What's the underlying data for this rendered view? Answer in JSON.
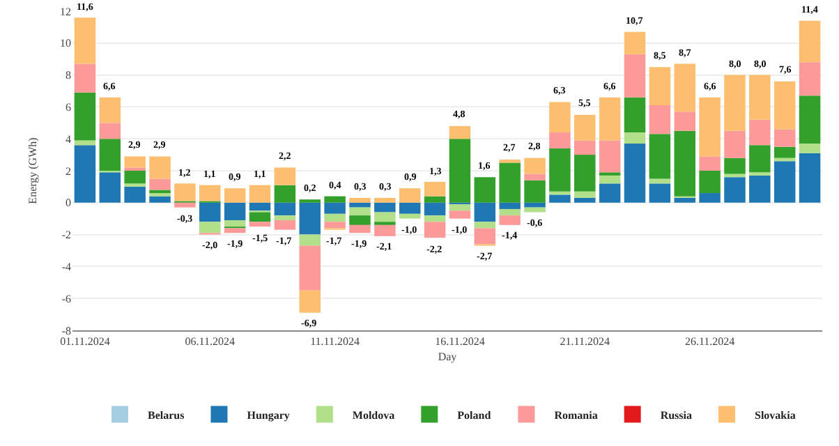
{
  "chart_data": {
    "type": "bar",
    "stacked": true,
    "xlabel": "Day",
    "ylabel": "Energy (GWh)",
    "x": [
      "2024-11-01",
      "2024-11-02",
      "2024-11-03",
      "2024-11-04",
      "2024-11-05",
      "2024-11-06",
      "2024-11-07",
      "2024-11-08",
      "2024-11-09",
      "2024-11-10",
      "2024-11-11",
      "2024-11-12",
      "2024-11-13",
      "2024-11-14",
      "2024-11-15",
      "2024-11-16",
      "2024-11-17",
      "2024-11-18",
      "2024-11-19",
      "2024-11-20",
      "2024-11-21",
      "2024-11-22",
      "2024-11-23",
      "2024-11-24",
      "2024-11-25",
      "2024-11-26",
      "2024-11-27",
      "2024-11-28",
      "2024-11-29",
      "2024-11-30"
    ],
    "xlim": [
      "2024-10-31T12:00",
      "2024-11-30T12:00"
    ],
    "xticks": [
      {
        "value": "2024-11-01",
        "label": "01.11.2024"
      },
      {
        "value": "2024-11-06",
        "label": "06.11.2024"
      },
      {
        "value": "2024-11-11",
        "label": "11.11.2024"
      },
      {
        "value": "2024-11-16",
        "label": "16.11.2024"
      },
      {
        "value": "2024-11-21",
        "label": "21.11.2024"
      },
      {
        "value": "2024-11-26",
        "label": "26.11.2024"
      }
    ],
    "ylim": [
      -8,
      12
    ],
    "yticks": [
      -8,
      -6,
      -4,
      -2,
      0,
      2,
      4,
      6,
      8,
      10,
      12
    ],
    "grid": "y",
    "legend": "bottom",
    "series": [
      {
        "name": "Belarus",
        "color": "#a6cee3",
        "values": [
          0,
          0,
          0,
          0,
          0,
          0,
          0,
          0,
          0,
          0,
          0,
          0,
          0,
          0,
          0,
          0,
          0,
          0,
          0,
          0,
          0,
          0,
          0,
          0,
          0,
          0,
          0,
          0,
          0,
          0
        ]
      },
      {
        "name": "Hungary",
        "color": "#1f78b4",
        "values": [
          3.6,
          1.9,
          1.0,
          0.4,
          0,
          -1.2,
          -1.1,
          -0.5,
          -0.8,
          -2.0,
          -0.7,
          -0.3,
          -0.6,
          -0.7,
          -0.8,
          -0.1,
          -1.2,
          -0.4,
          -0.3,
          0.5,
          0.3,
          1.2,
          3.7,
          1.2,
          0.3,
          0.6,
          1.6,
          1.7,
          2.6,
          3.1
        ]
      },
      {
        "name": "Moldova",
        "color": "#b2df8a",
        "values": [
          0.3,
          0.1,
          0.2,
          0.2,
          0,
          -0.7,
          -0.4,
          -0.1,
          -0.3,
          -0.7,
          -0.5,
          -0.5,
          -0.6,
          -0.3,
          -0.4,
          -0.4,
          -0.4,
          -0.4,
          -0.3,
          0.2,
          0.4,
          0.5,
          0.7,
          0.3,
          0.1,
          0,
          0.2,
          0.2,
          0.2,
          0.6
        ]
      },
      {
        "name": "Poland",
        "color": "#33a02c",
        "values": [
          3.0,
          2.0,
          0.8,
          0.2,
          0.1,
          0.1,
          -0.1,
          -0.6,
          1.1,
          0.2,
          0.4,
          -0.6,
          -0.2,
          0,
          0.4,
          4.0,
          1.6,
          2.5,
          1.4,
          2.7,
          2.3,
          0.2,
          2.2,
          2.8,
          4.1,
          1.4,
          1.0,
          1.7,
          0.7,
          3.0
        ]
      },
      {
        "name": "Romania",
        "color": "#fb9a99",
        "values": [
          1.8,
          1.0,
          0.2,
          0.7,
          -0.3,
          -0.1,
          -0.3,
          -0.3,
          -0.6,
          -2.8,
          -0.4,
          -0.5,
          -0.7,
          0,
          -1.0,
          -0.5,
          -1.0,
          -0.6,
          0.4,
          1.0,
          0.9,
          2.0,
          2.7,
          1.8,
          1.2,
          0.9,
          1.7,
          1.6,
          1.1,
          2.1
        ]
      },
      {
        "name": "Russia",
        "color": "#e31a1c",
        "values": [
          0,
          0,
          0,
          0,
          0,
          0,
          0,
          0,
          0,
          0,
          0,
          0,
          0,
          0,
          0,
          0,
          0,
          0,
          0,
          0,
          0,
          0,
          0,
          0,
          0,
          0,
          0,
          0,
          0,
          0
        ]
      },
      {
        "name": "Slovakia",
        "color": "#fdbf6f",
        "values": [
          2.9,
          1.6,
          0.7,
          1.4,
          1.1,
          1.0,
          0.9,
          1.1,
          1.1,
          -1.4,
          -0.1,
          0.3,
          0.3,
          0.9,
          0.9,
          0.8,
          -0.1,
          0.2,
          1.0,
          1.9,
          1.6,
          2.7,
          1.4,
          2.4,
          3.0,
          3.7,
          3.5,
          2.8,
          3.0,
          2.6
        ]
      }
    ],
    "annotations": [
      {
        "text": "11,6",
        "x": "2024-11-01",
        "y": 11.6
      },
      {
        "text": "6,6",
        "x": "2024-11-02",
        "y": 6.6
      },
      {
        "text": "2,9",
        "x": "2024-11-03",
        "y": 2.9
      },
      {
        "text": "2,9",
        "x": "2024-11-04",
        "y": 2.9
      },
      {
        "text": "1,2",
        "x": "2024-11-05",
        "y": 1.2
      },
      {
        "text": "1,1",
        "x": "2024-11-06",
        "y": 1.1
      },
      {
        "text": "0,9",
        "x": "2024-11-07",
        "y": 0.9
      },
      {
        "text": "1,1",
        "x": "2024-11-08",
        "y": 1.1
      },
      {
        "text": "2,2",
        "x": "2024-11-09",
        "y": 2.2
      },
      {
        "text": "0,2",
        "x": "2024-11-10",
        "y": 0.2
      },
      {
        "text": "0,4",
        "x": "2024-11-11",
        "y": 0.4
      },
      {
        "text": "0,3",
        "x": "2024-11-12",
        "y": 0.3
      },
      {
        "text": "0,3",
        "x": "2024-11-13",
        "y": 0.3
      },
      {
        "text": "0,9",
        "x": "2024-11-14",
        "y": 0.9
      },
      {
        "text": "1,3",
        "x": "2024-11-15",
        "y": 1.3
      },
      {
        "text": "4,8",
        "x": "2024-11-16",
        "y": 4.8
      },
      {
        "text": "1,6",
        "x": "2024-11-17",
        "y": 1.6
      },
      {
        "text": "2,7",
        "x": "2024-11-18",
        "y": 2.7
      },
      {
        "text": "2,8",
        "x": "2024-11-19",
        "y": 2.8
      },
      {
        "text": "6,3",
        "x": "2024-11-20",
        "y": 6.3
      },
      {
        "text": "5,5",
        "x": "2024-11-21",
        "y": 5.5
      },
      {
        "text": "6,6",
        "x": "2024-11-22",
        "y": 6.6
      },
      {
        "text": "10,7",
        "x": "2024-11-23",
        "y": 10.7
      },
      {
        "text": "8,5",
        "x": "2024-11-24",
        "y": 8.5
      },
      {
        "text": "8,7",
        "x": "2024-11-25",
        "y": 8.7
      },
      {
        "text": "6,6",
        "x": "2024-11-26",
        "y": 6.6
      },
      {
        "text": "8,0",
        "x": "2024-11-27",
        "y": 8.0
      },
      {
        "text": "8,0",
        "x": "2024-11-28",
        "y": 8.0
      },
      {
        "text": "7,6",
        "x": "2024-11-29",
        "y": 7.6
      },
      {
        "text": "11,4",
        "x": "2024-11-30",
        "y": 11.4
      },
      {
        "text": "-0,3",
        "x": "2024-11-05",
        "y": -0.3
      },
      {
        "text": "-2,0",
        "x": "2024-11-06",
        "y": -2.0
      },
      {
        "text": "-1,9",
        "x": "2024-11-07",
        "y": -1.9
      },
      {
        "text": "-1,5",
        "x": "2024-11-08",
        "y": -1.5
      },
      {
        "text": "-1,7",
        "x": "2024-11-09",
        "y": -1.7
      },
      {
        "text": "-6,9",
        "x": "2024-11-10",
        "y": -6.9
      },
      {
        "text": "-1,7",
        "x": "2024-11-11",
        "y": -1.7
      },
      {
        "text": "-1,9",
        "x": "2024-11-12",
        "y": -1.9
      },
      {
        "text": "-2,1",
        "x": "2024-11-13",
        "y": -2.1
      },
      {
        "text": "-1,0",
        "x": "2024-11-14",
        "y": -1.0
      },
      {
        "text": "-2,2",
        "x": "2024-11-15",
        "y": -2.2
      },
      {
        "text": "-1,0",
        "x": "2024-11-16",
        "y": -1.0
      },
      {
        "text": "-2,7",
        "x": "2024-11-17",
        "y": -2.7
      },
      {
        "text": "-1,4",
        "x": "2024-11-18",
        "y": -1.4
      },
      {
        "text": "-0,6",
        "x": "2024-11-19",
        "y": -0.6
      }
    ]
  }
}
